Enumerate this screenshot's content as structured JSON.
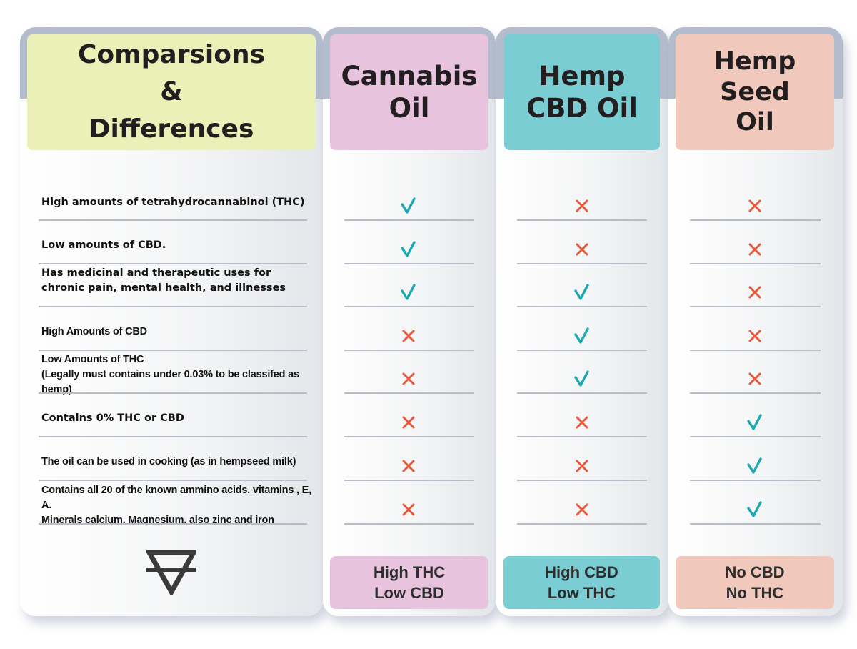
{
  "header": {
    "title_lines": [
      "Comparsions",
      "&",
      "Differences"
    ],
    "columns": [
      {
        "lines": [
          "Cannabis",
          "Oil"
        ],
        "color": "#e7c3de"
      },
      {
        "lines": [
          "Hemp",
          "CBD Oil"
        ],
        "color": "#7acdd2"
      },
      {
        "lines": [
          "Hemp Seed",
          "Oil"
        ],
        "color": "#f1c9bc"
      }
    ],
    "title_color": "#ebefb8"
  },
  "rows": [
    {
      "lines": [
        "High amounts of tetrahydrocannabinol (THC)"
      ],
      "values": [
        "check",
        "cross",
        "cross"
      ]
    },
    {
      "lines": [
        "Low amounts of CBD."
      ],
      "values": [
        "check",
        "cross",
        "cross"
      ]
    },
    {
      "lines": [
        "Has medicinal and therapeutic uses for",
        "chronic pain, mental health, and illnesses"
      ],
      "values": [
        "check",
        "check",
        "cross"
      ]
    },
    {
      "lines": [
        "High Amounts of CBD"
      ],
      "values": [
        "cross",
        "check",
        "cross"
      ]
    },
    {
      "lines": [
        "Low Amounts of THC",
        "(Legally must contains under 0.03% to be classifed as hemp)"
      ],
      "values": [
        "cross",
        "check",
        "cross"
      ]
    },
    {
      "lines": [
        "Contains 0% THC or CBD"
      ],
      "values": [
        "cross",
        "cross",
        "check"
      ]
    },
    {
      "lines": [
        "The oil can be used in cooking (as in hempseed milk)"
      ],
      "values": [
        "cross",
        "cross",
        "check"
      ]
    },
    {
      "lines": [
        "Contains all 20 of the known ammino acids. vitamins , E, A.",
        "Minerals calcium, Magnesium, also zinc and iron"
      ],
      "values": [
        "cross",
        "cross",
        "check"
      ]
    }
  ],
  "footer": {
    "symbol": "earth-alchemical-symbol",
    "badges": [
      {
        "lines": [
          "High THC",
          "Low CBD"
        ]
      },
      {
        "lines": [
          "High CBD",
          "Low THC"
        ]
      },
      {
        "lines": [
          "No CBD",
          "No THC"
        ]
      }
    ]
  },
  "colors": {
    "check": "#1aa9b0",
    "cross": "#e8583a",
    "frame": "#b3bccc",
    "text": "#231f20"
  }
}
